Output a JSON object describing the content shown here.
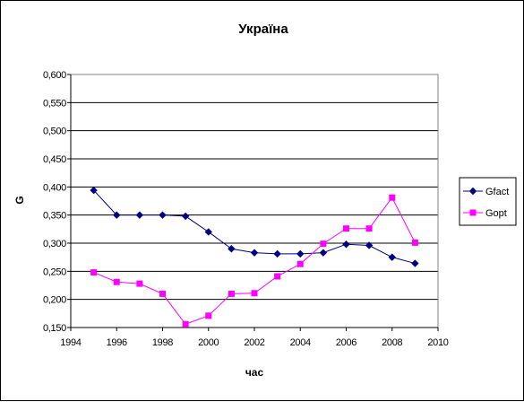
{
  "chart_data": {
    "type": "line",
    "title": "Україна",
    "xlabel": "час",
    "ylabel": "G",
    "xlim": [
      1994,
      2010
    ],
    "ylim": [
      0.15,
      0.6
    ],
    "x_ticks": [
      1994,
      1996,
      1998,
      2000,
      2002,
      2004,
      2006,
      2008,
      2010
    ],
    "x_tick_labels": [
      "1994",
      "1996",
      "1998",
      "2000",
      "2002",
      "2004",
      "2006",
      "2008",
      "2010"
    ],
    "y_ticks": [
      0.15,
      0.2,
      0.25,
      0.3,
      0.35,
      0.4,
      0.45,
      0.5,
      0.55,
      0.6
    ],
    "y_tick_labels": [
      "0,150",
      "0,200",
      "0,250",
      "0,300",
      "0,350",
      "0,400",
      "0,450",
      "0,500",
      "0,550",
      "0,600"
    ],
    "grid": "horizontal major gridlines",
    "legend_position": "right",
    "x": [
      1995,
      1996,
      1997,
      1998,
      1999,
      2000,
      2001,
      2002,
      2003,
      2004,
      2005,
      2006,
      2007,
      2008,
      2009
    ],
    "series": [
      {
        "name": "Gfact",
        "color": "#000080",
        "marker": "diamond",
        "values": [
          0.394,
          0.35,
          0.35,
          0.35,
          0.348,
          0.32,
          0.29,
          0.283,
          0.281,
          0.281,
          0.283,
          0.298,
          0.296,
          0.275,
          0.264
        ]
      },
      {
        "name": "Gopt",
        "color": "#FF00FF",
        "marker": "square",
        "values": [
          0.248,
          0.231,
          0.228,
          0.21,
          0.156,
          0.171,
          0.21,
          0.211,
          0.241,
          0.263,
          0.299,
          0.326,
          0.326,
          0.381,
          0.301
        ]
      }
    ]
  }
}
